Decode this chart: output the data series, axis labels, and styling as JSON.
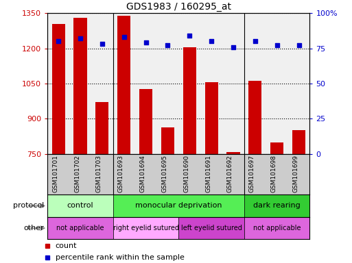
{
  "title": "GDS1983 / 160295_at",
  "samples": [
    "GSM101701",
    "GSM101702",
    "GSM101703",
    "GSM101693",
    "GSM101694",
    "GSM101695",
    "GSM101690",
    "GSM101691",
    "GSM101692",
    "GSM101697",
    "GSM101698",
    "GSM101699"
  ],
  "counts": [
    1305,
    1330,
    970,
    1340,
    1025,
    862,
    1205,
    1055,
    758,
    1060,
    800,
    852
  ],
  "percentile_ranks": [
    80,
    82,
    78,
    83,
    79,
    77,
    84,
    80,
    76,
    80,
    77,
    77
  ],
  "ylim_left": [
    750,
    1350
  ],
  "ylim_right": [
    0,
    100
  ],
  "yticks_left": [
    750,
    900,
    1050,
    1200,
    1350
  ],
  "yticks_right": [
    0,
    25,
    50,
    75,
    100
  ],
  "ytick_right_labels": [
    "0",
    "25",
    "50",
    "75",
    "100%"
  ],
  "bar_color": "#cc0000",
  "dot_color": "#0000cc",
  "protocol_groups": [
    {
      "label": "control",
      "start": 0,
      "end": 3,
      "color": "#bbffbb"
    },
    {
      "label": "monocular deprivation",
      "start": 3,
      "end": 9,
      "color": "#55ee55"
    },
    {
      "label": "dark rearing",
      "start": 9,
      "end": 12,
      "color": "#33cc33"
    }
  ],
  "other_groups": [
    {
      "label": "not applicable",
      "start": 0,
      "end": 3,
      "color": "#dd66dd"
    },
    {
      "label": "right eyelid sutured",
      "start": 3,
      "end": 6,
      "color": "#ffaaff"
    },
    {
      "label": "left eyelid sutured",
      "start": 6,
      "end": 9,
      "color": "#cc44cc"
    },
    {
      "label": "not applicable",
      "start": 9,
      "end": 12,
      "color": "#dd66dd"
    }
  ],
  "legend_count_color": "#cc0000",
  "legend_pct_color": "#0000cc",
  "background_color": "#ffffff",
  "plot_bg_color": "#f0f0f0",
  "xlabels_bg_color": "#cccccc",
  "row_label_protocol": "protocol",
  "row_label_other": "other",
  "group_dividers": [
    3,
    9
  ],
  "bar_width": 0.6
}
